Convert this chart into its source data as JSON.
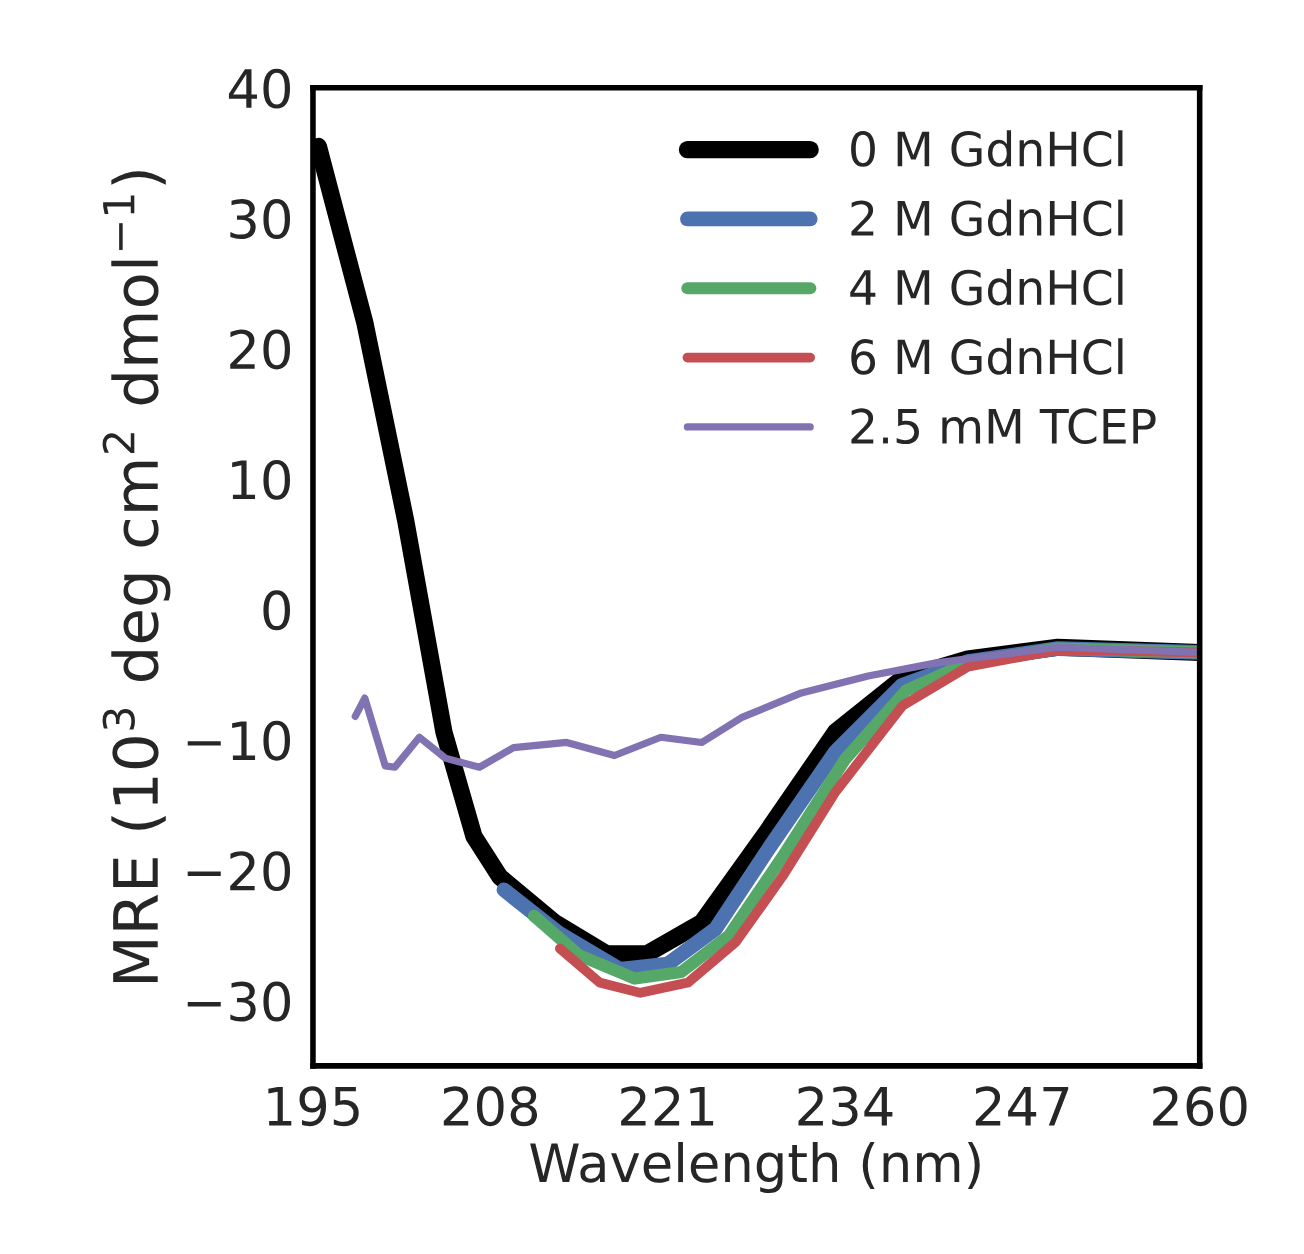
{
  "chart_data": {
    "type": "line",
    "xlabel": "Wavelength (nm)",
    "ylabel": "MRE (10$^{3}$ deg cm$^{2}$ dmol$^{−1}$)",
    "xlim": [
      195,
      260
    ],
    "xticks": [
      195,
      208,
      221,
      234,
      247,
      260
    ],
    "ylim": [
      -35,
      40
    ],
    "yticks": [
      -30,
      -20,
      -10,
      0,
      10,
      20,
      30,
      40
    ],
    "grid": false,
    "legend": "top right",
    "marker": "none",
    "line_style": "solid",
    "series": [
      {
        "name": "0 M GdnHCl",
        "color": "#000000",
        "x": [
          195.4,
          198.8,
          201.8,
          204.6,
          206.8,
          208.7,
          212.7,
          216.5,
          219.5,
          223.5,
          228.3,
          233.3,
          238.2,
          243,
          249.6,
          260
        ],
        "values": [
          35.5,
          22,
          6.8,
          -9.4,
          -17.4,
          -20.5,
          -24,
          -26.4,
          -26.4,
          -24,
          -17,
          -9.4,
          -5.3,
          -3.8,
          -2.9,
          -3.3
        ]
      },
      {
        "name": "2 M GdnHCl",
        "color": "#4c72b0",
        "x": [
          209,
          213,
          217.5,
          221,
          224.5,
          228.3,
          233.3,
          238.2,
          243,
          249.6,
          260
        ],
        "values": [
          -21.5,
          -24.8,
          -27.6,
          -27.2,
          -24.5,
          -18.5,
          -10.9,
          -5.8,
          -4,
          -3,
          -3.3
        ]
      },
      {
        "name": "4 M GdnHCl",
        "color": "#55a868",
        "x": [
          211.2,
          214.5,
          218.6,
          222,
          225.5,
          229.4,
          234,
          238.5,
          243,
          249.6,
          260
        ],
        "values": [
          -23.5,
          -26.5,
          -28.3,
          -27.8,
          -25,
          -19,
          -11.5,
          -6.2,
          -4.1,
          -3,
          -3.3
        ]
      },
      {
        "name": "6 M GdnHCl",
        "color": "#c44e52",
        "x": [
          213.1,
          216,
          219,
          222.5,
          226,
          229.4,
          233.3,
          238.2,
          243,
          249.6,
          260
        ],
        "values": [
          -26,
          -28.6,
          -29.4,
          -28.6,
          -25.5,
          -20.5,
          -14,
          -7.4,
          -4.4,
          -3.1,
          -3.3
        ]
      },
      {
        "name": "2.5 mM TCEP",
        "color": "#8172b2",
        "x": [
          198.1,
          198.8,
          200.3,
          201,
          202.8,
          204.7,
          207.2,
          209.7,
          213.6,
          217.1,
          220.5,
          223.5,
          226.4,
          230.8,
          235.7,
          240.7,
          249.6,
          260
        ],
        "values": [
          -8.2,
          -6.8,
          -12,
          -12.1,
          -9.8,
          -11.4,
          -12.1,
          -10.6,
          -10.2,
          -11.2,
          -9.8,
          -10.2,
          -8.3,
          -6.4,
          -5.1,
          -4.1,
          -2.9,
          -3.3
        ]
      }
    ]
  }
}
